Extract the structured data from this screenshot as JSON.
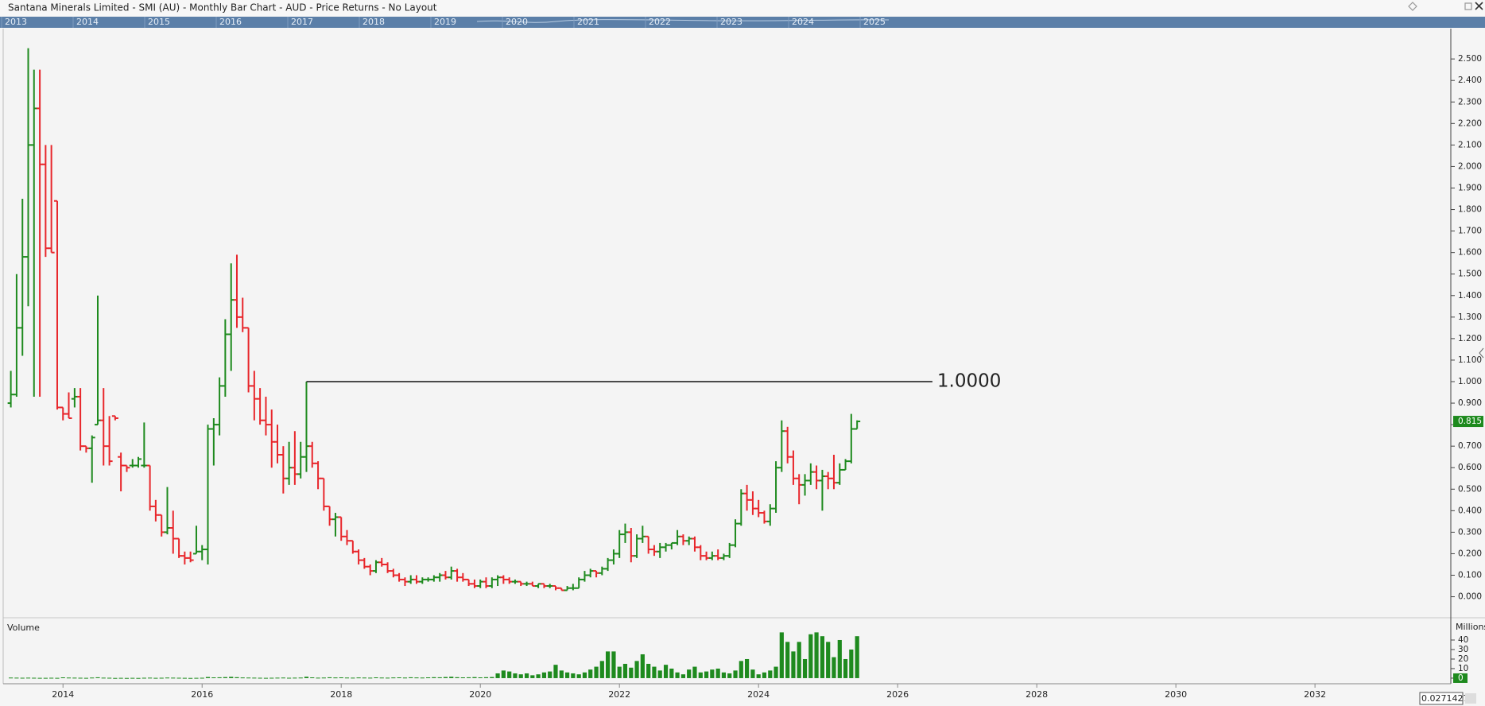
{
  "window_title": "Santana Minerals Limited - SMI (AU) - Monthly Bar Chart - AUD - Price Returns - No Layout",
  "navigator": {
    "years": [
      "2013",
      "2014",
      "2015",
      "2016",
      "2017",
      "2018",
      "2019",
      "2020",
      "2021",
      "2022",
      "2023",
      "2024",
      "2025"
    ]
  },
  "crosshair_readout": "0.0271427",
  "chart_data": [
    {
      "type": "ohlc",
      "x": [
        2013.25,
        2013.333,
        2013.417,
        2013.5,
        2013.583,
        2013.667,
        2013.75,
        2013.833,
        2013.917,
        2014,
        2014.083,
        2014.167,
        2014.25,
        2014.333,
        2014.417,
        2014.5,
        2014.583,
        2014.667,
        2014.75,
        2014.833,
        2014.917,
        2015,
        2015.083,
        2015.167,
        2015.25,
        2015.333,
        2015.417,
        2015.5,
        2015.583,
        2015.667,
        2015.75,
        2015.833,
        2015.917,
        2016,
        2016.083,
        2016.167,
        2016.25,
        2016.333,
        2016.417,
        2016.5,
        2016.583,
        2016.667,
        2016.75,
        2016.833,
        2016.917,
        2017,
        2017.083,
        2017.167,
        2017.25,
        2017.333,
        2017.417,
        2017.5,
        2017.583,
        2017.667,
        2017.75,
        2017.833,
        2017.917,
        2018,
        2018.083,
        2018.167,
        2018.25,
        2018.333,
        2018.417,
        2018.5,
        2018.583,
        2018.667,
        2018.75,
        2018.833,
        2018.917,
        2019,
        2019.083,
        2019.167,
        2019.25,
        2019.333,
        2019.417,
        2019.5,
        2019.583,
        2019.667,
        2019.75,
        2019.833,
        2019.917,
        2020,
        2020.083,
        2020.167,
        2020.25,
        2020.333,
        2020.417,
        2020.5,
        2020.583,
        2020.667,
        2020.75,
        2020.833,
        2020.917,
        2021,
        2021.083,
        2021.167,
        2021.25,
        2021.333,
        2021.417,
        2021.5,
        2021.583,
        2021.667,
        2021.75,
        2021.833,
        2021.917,
        2022,
        2022.083,
        2022.167,
        2022.25,
        2022.333,
        2022.417,
        2022.5,
        2022.583,
        2022.667,
        2022.75,
        2022.833,
        2022.917,
        2023,
        2023.083,
        2023.167,
        2023.25,
        2023.333,
        2023.417,
        2023.5,
        2023.583,
        2023.667,
        2023.75,
        2023.833,
        2023.917,
        2024,
        2024.083,
        2024.167,
        2024.25,
        2024.333,
        2024.417,
        2024.5,
        2024.583,
        2024.667,
        2024.75,
        2024.833,
        2024.917,
        2025,
        2025.083,
        2025.167,
        2025.25,
        2025.333,
        2025.417
      ],
      "open": [
        0.9,
        0.94,
        1.25,
        1.58,
        2.1,
        2.27,
        2.01,
        1.62,
        1.84,
        0.88,
        0.85,
        0.92,
        0.93,
        0.7,
        0.69,
        0.8,
        0.82,
        0.7,
        0.84,
        0.65,
        0.61,
        0.61,
        0.61,
        0.61,
        0.61,
        0.42,
        0.38,
        0.3,
        0.32,
        0.27,
        0.19,
        0.18,
        0.2,
        0.21,
        0.22,
        0.78,
        0.8,
        0.98,
        1.22,
        1.38,
        1.3,
        1.25,
        0.98,
        0.92,
        0.82,
        0.8,
        0.72,
        0.66,
        0.55,
        0.6,
        0.57,
        0.65,
        0.7,
        0.62,
        0.55,
        0.42,
        0.36,
        0.37,
        0.28,
        0.26,
        0.21,
        0.17,
        0.14,
        0.12,
        0.16,
        0.15,
        0.12,
        0.1,
        0.08,
        0.07,
        0.08,
        0.07,
        0.08,
        0.08,
        0.09,
        0.1,
        0.09,
        0.12,
        0.09,
        0.08,
        0.06,
        0.05,
        0.07,
        0.05,
        0.08,
        0.09,
        0.08,
        0.07,
        0.07,
        0.06,
        0.06,
        0.05,
        0.06,
        0.05,
        0.05,
        0.04,
        0.03,
        0.04,
        0.04,
        0.08,
        0.1,
        0.12,
        0.11,
        0.13,
        0.17,
        0.2,
        0.29,
        0.3,
        0.19,
        0.27,
        0.28,
        0.22,
        0.21,
        0.23,
        0.24,
        0.25,
        0.28,
        0.26,
        0.27,
        0.23,
        0.19,
        0.18,
        0.19,
        0.18,
        0.19,
        0.24,
        0.34,
        0.48,
        0.45,
        0.41,
        0.39,
        0.35,
        0.41,
        0.6,
        0.77,
        0.65,
        0.55,
        0.52,
        0.54,
        0.58,
        0.54,
        0.56,
        0.55,
        0.53,
        0.59,
        0.63,
        0.78
      ],
      "high": [
        1.05,
        1.5,
        1.85,
        2.55,
        2.45,
        2.45,
        2.1,
        2.1,
        1.84,
        0.88,
        0.95,
        0.97,
        0.97,
        0.7,
        0.75,
        1.4,
        0.97,
        0.84,
        0.84,
        0.67,
        0.61,
        0.64,
        0.65,
        0.81,
        0.61,
        0.45,
        0.38,
        0.51,
        0.4,
        0.27,
        0.21,
        0.21,
        0.33,
        0.24,
        0.8,
        0.83,
        1.02,
        1.29,
        1.55,
        1.59,
        1.39,
        1.25,
        1.05,
        0.97,
        0.93,
        0.87,
        0.8,
        0.7,
        0.72,
        0.77,
        0.72,
        1.0,
        0.72,
        0.63,
        0.55,
        0.42,
        0.39,
        0.37,
        0.31,
        0.26,
        0.22,
        0.18,
        0.15,
        0.17,
        0.18,
        0.16,
        0.13,
        0.11,
        0.09,
        0.1,
        0.1,
        0.09,
        0.09,
        0.1,
        0.11,
        0.12,
        0.14,
        0.13,
        0.11,
        0.08,
        0.08,
        0.08,
        0.09,
        0.09,
        0.1,
        0.1,
        0.09,
        0.08,
        0.07,
        0.07,
        0.07,
        0.06,
        0.06,
        0.06,
        0.05,
        0.04,
        0.05,
        0.06,
        0.09,
        0.12,
        0.13,
        0.12,
        0.14,
        0.18,
        0.22,
        0.31,
        0.34,
        0.32,
        0.29,
        0.33,
        0.28,
        0.24,
        0.25,
        0.25,
        0.25,
        0.31,
        0.29,
        0.28,
        0.28,
        0.24,
        0.21,
        0.21,
        0.22,
        0.2,
        0.25,
        0.36,
        0.5,
        0.52,
        0.49,
        0.45,
        0.4,
        0.43,
        0.63,
        0.82,
        0.79,
        0.68,
        0.57,
        0.57,
        0.62,
        0.61,
        0.59,
        0.58,
        0.66,
        0.62,
        0.64,
        0.85,
        0.82
      ],
      "low": [
        0.88,
        0.93,
        1.12,
        1.35,
        0.93,
        0.93,
        1.58,
        1.6,
        0.87,
        0.82,
        0.83,
        0.88,
        0.68,
        0.67,
        0.53,
        0.8,
        0.61,
        0.61,
        0.82,
        0.49,
        0.58,
        0.6,
        0.6,
        0.6,
        0.4,
        0.35,
        0.28,
        0.29,
        0.2,
        0.18,
        0.15,
        0.16,
        0.2,
        0.17,
        0.15,
        0.61,
        0.75,
        0.93,
        1.05,
        1.25,
        1.23,
        0.95,
        0.82,
        0.8,
        0.75,
        0.6,
        0.62,
        0.48,
        0.52,
        0.52,
        0.55,
        0.58,
        0.6,
        0.5,
        0.4,
        0.33,
        0.28,
        0.26,
        0.24,
        0.2,
        0.15,
        0.13,
        0.1,
        0.11,
        0.14,
        0.11,
        0.09,
        0.07,
        0.05,
        0.06,
        0.06,
        0.06,
        0.07,
        0.07,
        0.07,
        0.08,
        0.08,
        0.07,
        0.07,
        0.05,
        0.04,
        0.04,
        0.04,
        0.04,
        0.05,
        0.06,
        0.06,
        0.06,
        0.05,
        0.05,
        0.05,
        0.04,
        0.04,
        0.04,
        0.03,
        0.03,
        0.03,
        0.03,
        0.04,
        0.07,
        0.09,
        0.09,
        0.1,
        0.12,
        0.15,
        0.18,
        0.25,
        0.16,
        0.18,
        0.25,
        0.2,
        0.19,
        0.18,
        0.21,
        0.22,
        0.24,
        0.24,
        0.24,
        0.21,
        0.17,
        0.17,
        0.17,
        0.17,
        0.17,
        0.18,
        0.23,
        0.33,
        0.4,
        0.38,
        0.37,
        0.34,
        0.33,
        0.39,
        0.58,
        0.62,
        0.52,
        0.43,
        0.47,
        0.52,
        0.5,
        0.4,
        0.5,
        0.5,
        0.52,
        0.59,
        0.62,
        0.78
      ],
      "close": [
        0.94,
        1.25,
        1.58,
        2.1,
        2.27,
        2.01,
        1.62,
        1.6,
        0.88,
        0.85,
        0.83,
        0.93,
        0.7,
        0.69,
        0.74,
        0.82,
        0.7,
        0.63,
        0.83,
        0.61,
        0.6,
        0.61,
        0.64,
        0.61,
        0.42,
        0.38,
        0.3,
        0.32,
        0.27,
        0.19,
        0.18,
        0.17,
        0.21,
        0.22,
        0.78,
        0.8,
        0.98,
        1.22,
        1.38,
        1.3,
        1.25,
        0.98,
        0.92,
        0.82,
        0.8,
        0.72,
        0.66,
        0.55,
        0.6,
        0.57,
        0.65,
        0.7,
        0.62,
        0.55,
        0.42,
        0.36,
        0.37,
        0.28,
        0.26,
        0.21,
        0.17,
        0.14,
        0.12,
        0.16,
        0.15,
        0.12,
        0.1,
        0.08,
        0.07,
        0.08,
        0.07,
        0.08,
        0.08,
        0.09,
        0.1,
        0.09,
        0.12,
        0.09,
        0.08,
        0.06,
        0.05,
        0.07,
        0.05,
        0.08,
        0.09,
        0.08,
        0.07,
        0.07,
        0.06,
        0.06,
        0.05,
        0.06,
        0.05,
        0.05,
        0.04,
        0.03,
        0.04,
        0.04,
        0.08,
        0.1,
        0.12,
        0.11,
        0.13,
        0.17,
        0.2,
        0.29,
        0.3,
        0.19,
        0.27,
        0.28,
        0.22,
        0.21,
        0.23,
        0.24,
        0.25,
        0.28,
        0.26,
        0.27,
        0.23,
        0.19,
        0.18,
        0.19,
        0.18,
        0.19,
        0.24,
        0.34,
        0.48,
        0.45,
        0.41,
        0.39,
        0.35,
        0.41,
        0.6,
        0.77,
        0.65,
        0.55,
        0.52,
        0.54,
        0.58,
        0.54,
        0.56,
        0.55,
        0.53,
        0.59,
        0.63,
        0.78,
        0.815
      ],
      "up_color": "#1e8a1e",
      "down_color": "#e8262b",
      "xlim": [
        2013.14,
        2033.93
      ],
      "xticks": [
        2014,
        2016,
        2018,
        2020,
        2022,
        2024,
        2026,
        2028,
        2030,
        2032
      ],
      "ylim": [
        -0.094,
        2.641
      ],
      "yticks": [
        {
          "value": 0,
          "label": "0.000"
        },
        {
          "value": 0.1,
          "label": "0.100"
        },
        {
          "value": 0.2,
          "label": "0.200"
        },
        {
          "value": 0.3,
          "label": "0.300"
        },
        {
          "value": 0.4,
          "label": "0.400"
        },
        {
          "value": 0.5,
          "label": "0.500"
        },
        {
          "value": 0.6,
          "label": "0.600"
        },
        {
          "value": 0.7,
          "label": "0.700"
        },
        {
          "value": 0.8,
          "label": "0.800"
        },
        {
          "value": 0.9,
          "label": "0.900"
        },
        {
          "value": 1,
          "label": "1.000"
        },
        {
          "value": 1.1,
          "label": "1.100"
        },
        {
          "value": 1.2,
          "label": "1.200"
        },
        {
          "value": 1.3,
          "label": "1.300"
        },
        {
          "value": 1.4,
          "label": "1.400"
        },
        {
          "value": 1.5,
          "label": "1.500"
        },
        {
          "value": 1.6,
          "label": "1.600"
        },
        {
          "value": 1.7,
          "label": "1.700"
        },
        {
          "value": 1.8,
          "label": "1.800"
        },
        {
          "value": 1.9,
          "label": "1.900"
        },
        {
          "value": 2,
          "label": "2.000"
        },
        {
          "value": 2.1,
          "label": "2.100"
        },
        {
          "value": 2.2,
          "label": "2.200"
        },
        {
          "value": 2.3,
          "label": "2.300"
        },
        {
          "value": 2.4,
          "label": "2.400"
        },
        {
          "value": 2.5,
          "label": "2.500"
        }
      ],
      "last_price": {
        "value": 0.815,
        "label": "0.815",
        "color": "#1e8a1e"
      },
      "reference_line": {
        "value": 1,
        "label": "1.0000",
        "x_start": 2017.5,
        "x_end": 2026.5
      }
    },
    {
      "type": "bar",
      "title": "Volume",
      "axis_label": "Millions",
      "color": "#1e8a1e",
      "values": [
        0.6,
        0.5,
        0.4,
        0.5,
        0.4,
        0.3,
        0.3,
        0.4,
        0.3,
        0.8,
        0.6,
        0.5,
        0.4,
        0.3,
        0.6,
        0.9,
        0.5,
        0.4,
        0.2,
        0.3,
        0.2,
        0.3,
        0.2,
        0.4,
        0.5,
        0.3,
        0.4,
        0.6,
        0.5,
        0.4,
        0.3,
        0.2,
        0.3,
        0.4,
        1.2,
        0.8,
        0.9,
        1.1,
        1.4,
        1.0,
        0.7,
        0.6,
        0.5,
        0.4,
        0.3,
        0.4,
        0.5,
        0.6,
        0.4,
        0.5,
        0.6,
        1.5,
        0.8,
        0.5,
        0.6,
        0.9,
        0.7,
        0.8,
        0.6,
        0.5,
        0.7,
        0.6,
        0.5,
        0.8,
        0.6,
        0.5,
        0.7,
        0.8,
        0.6,
        0.9,
        0.7,
        0.6,
        0.8,
        1.0,
        0.9,
        1.2,
        1.5,
        1.0,
        0.8,
        0.9,
        1.1,
        0.8,
        1,
        1.2,
        5,
        8,
        7,
        5,
        4,
        5,
        3,
        4,
        6,
        7,
        14,
        8,
        6,
        5,
        4,
        6,
        9,
        12,
        18,
        28,
        28,
        12,
        15,
        11,
        18,
        25,
        15,
        12,
        8,
        14,
        10,
        6,
        4,
        9,
        12,
        6,
        7,
        9,
        10,
        6,
        5,
        8,
        18,
        20,
        9,
        4,
        6,
        8,
        12,
        48,
        38,
        28,
        38,
        20,
        46,
        48,
        44,
        38,
        22,
        40,
        20,
        30,
        44
      ],
      "ylim": [
        -4.2,
        62.5
      ],
      "yticks": [
        0,
        10,
        20,
        30,
        40
      ]
    }
  ]
}
